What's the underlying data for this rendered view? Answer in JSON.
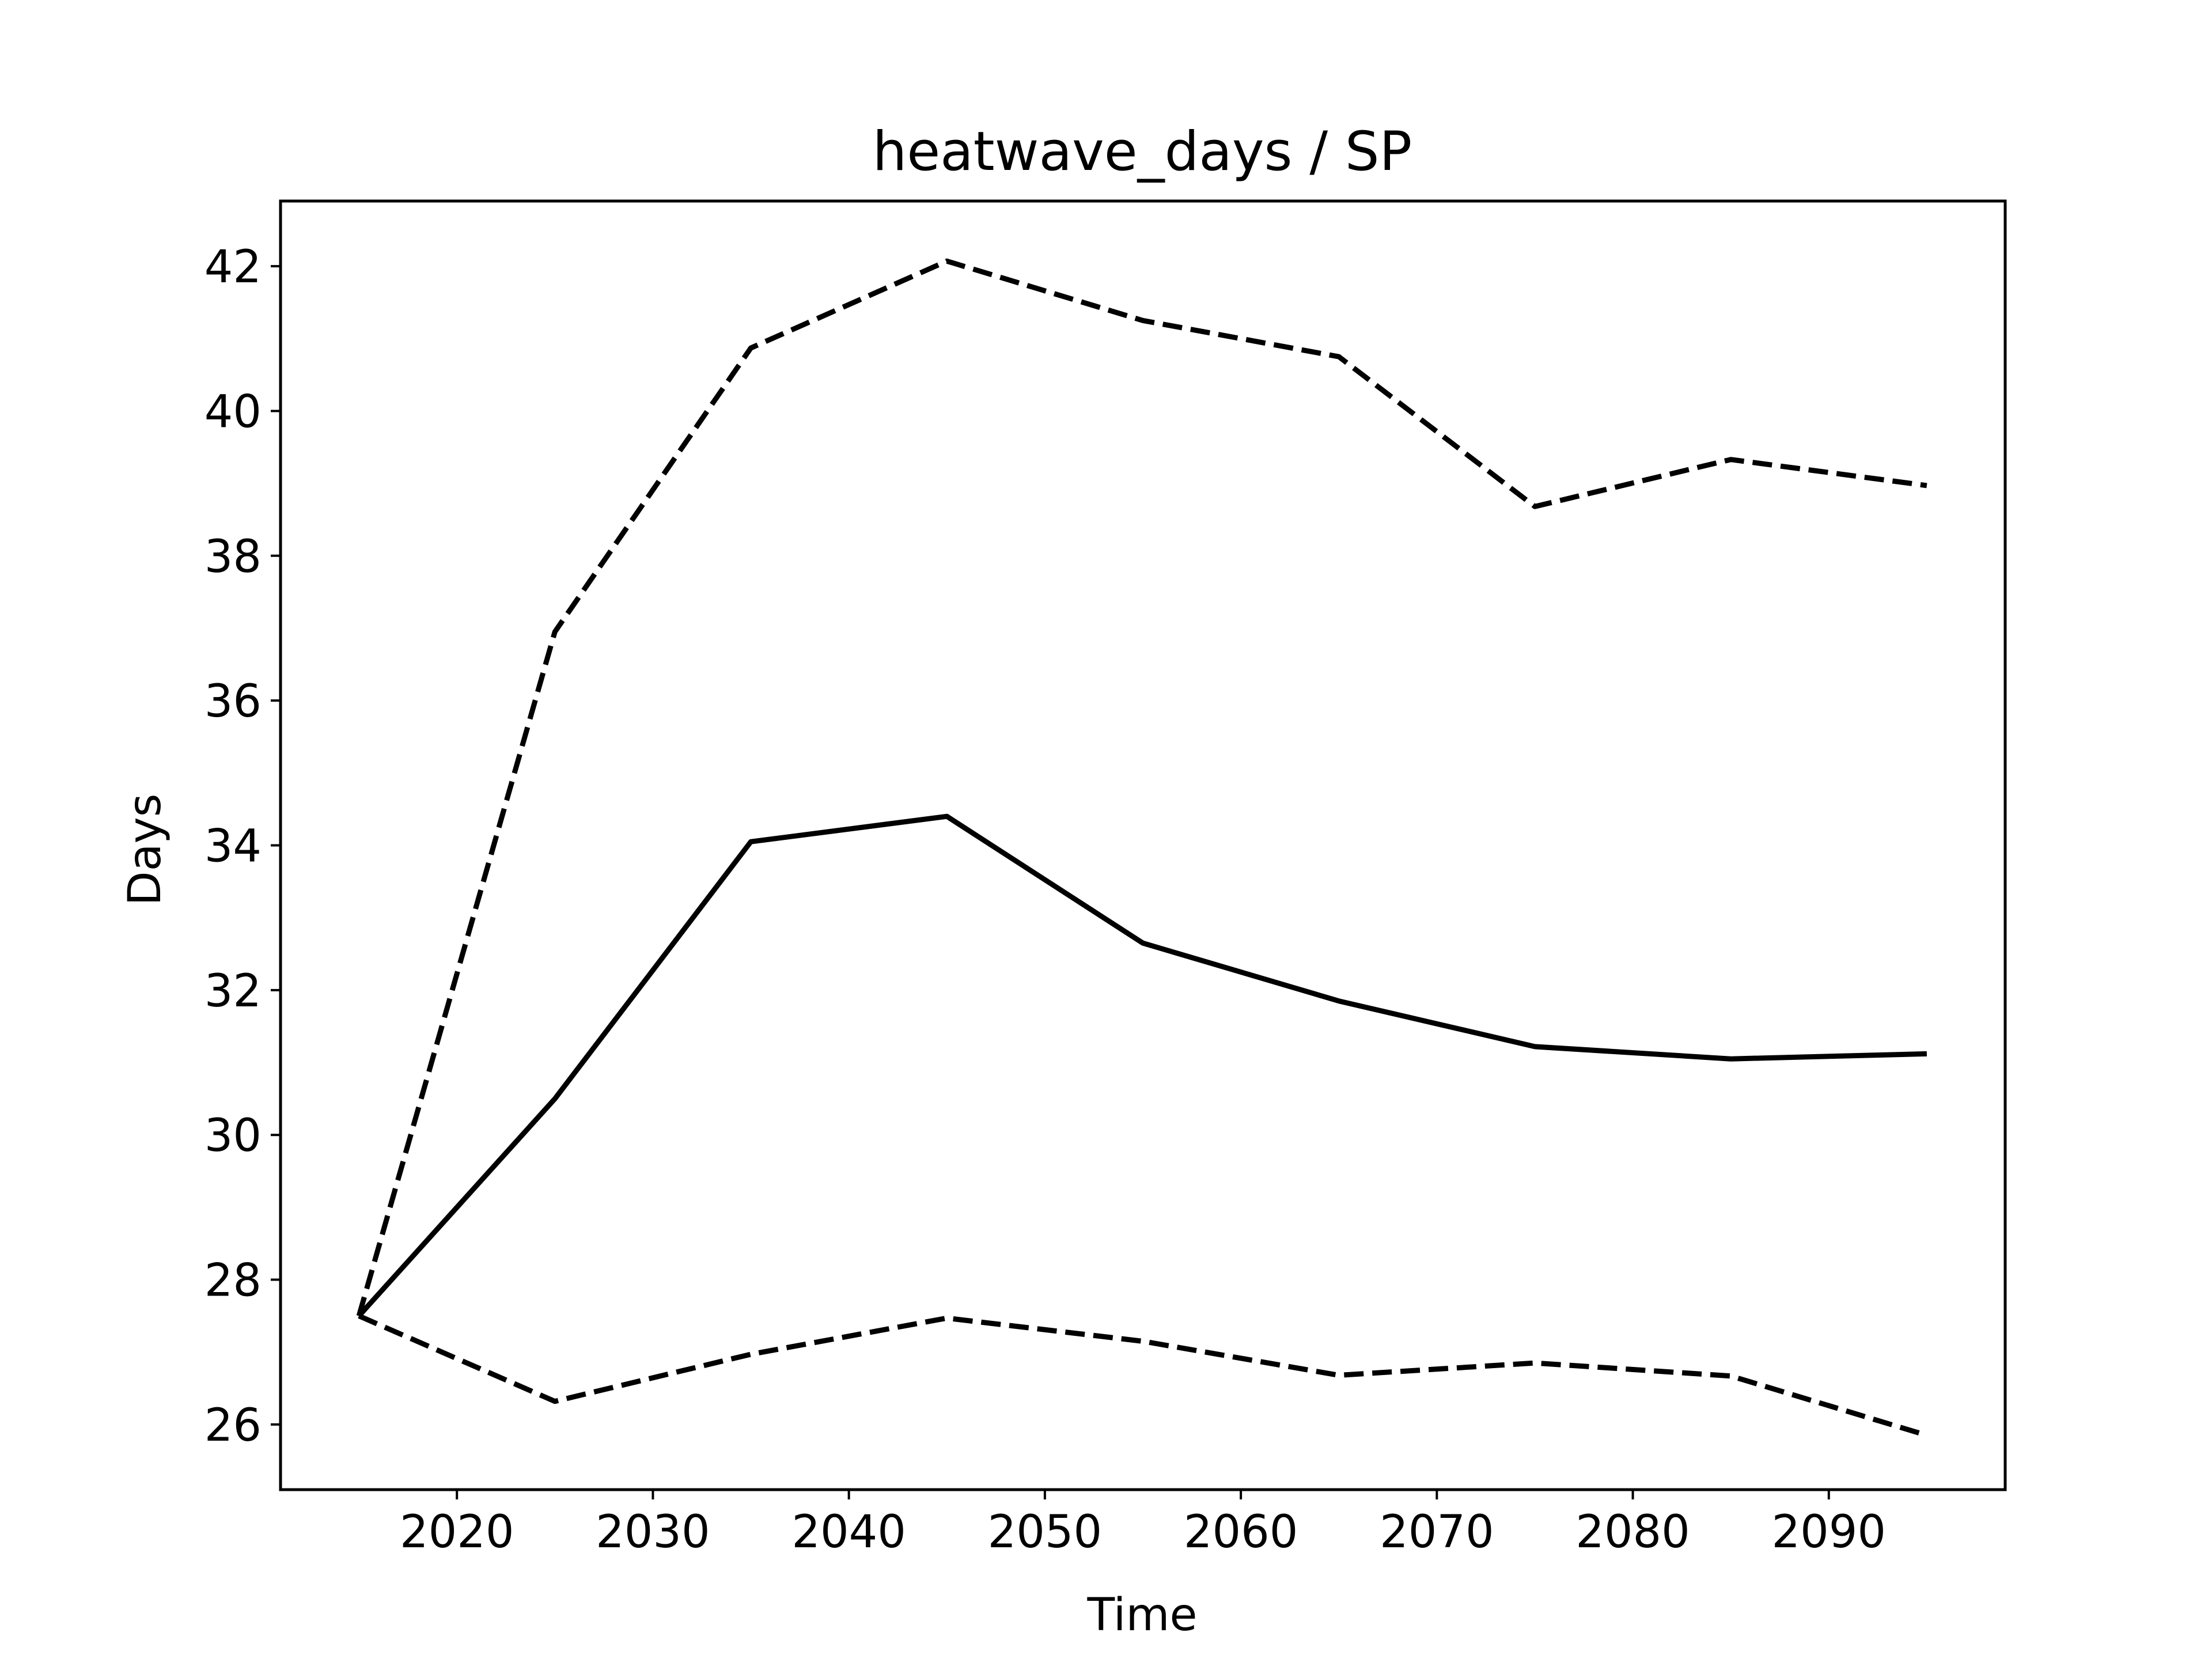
{
  "chart_data": {
    "type": "line",
    "title": "heatwave_days / SP",
    "xlabel": "Time",
    "ylabel": "Days",
    "xlim": [
      2011,
      2099
    ],
    "ylim": [
      25.1,
      42.9
    ],
    "xticks": [
      2020,
      2030,
      2040,
      2050,
      2060,
      2070,
      2080,
      2090
    ],
    "yticks": [
      26,
      28,
      30,
      32,
      34,
      36,
      38,
      40,
      42
    ],
    "grid": false,
    "x": [
      2015,
      2025,
      2035,
      2045,
      2055,
      2065,
      2075,
      2085,
      2095
    ],
    "series": [
      {
        "style": "solid",
        "color": "#000000",
        "values": [
          27.5,
          30.5,
          34.05,
          34.4,
          32.65,
          31.85,
          31.22,
          31.05,
          31.12
        ]
      },
      {
        "style": "dashed",
        "color": "#000000",
        "values": [
          27.5,
          36.95,
          40.87,
          42.07,
          41.25,
          40.75,
          38.68,
          39.33,
          38.97
        ]
      },
      {
        "style": "dashed",
        "color": "#000000",
        "values": [
          27.5,
          26.32,
          26.97,
          27.47,
          27.15,
          26.68,
          26.85,
          26.67,
          25.85
        ]
      }
    ]
  }
}
